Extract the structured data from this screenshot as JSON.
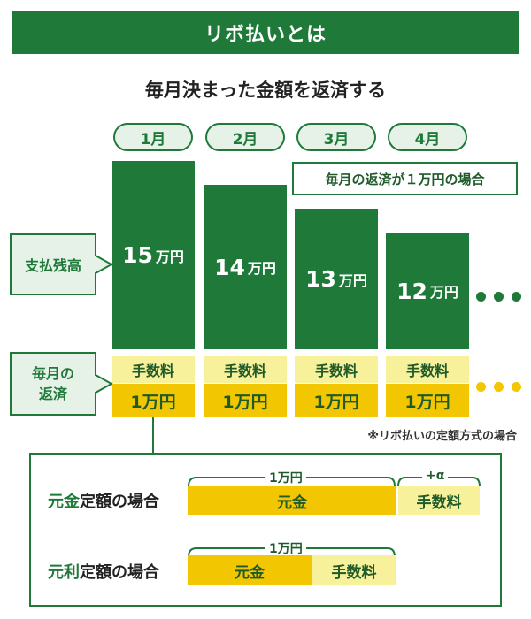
{
  "title": "リボ払いとは",
  "subtitle": "毎月決まった金額を返済する",
  "months": [
    "1月",
    "2月",
    "3月",
    "4月"
  ],
  "note": "毎月の返済が１万円の場合",
  "row_labels": {
    "balance": "支払残高",
    "monthly_payment": "毎月の\n返済"
  },
  "balances": [
    {
      "num": "15",
      "unit": "万円",
      "value": 15
    },
    {
      "num": "14",
      "unit": "万円",
      "value": 14
    },
    {
      "num": "13",
      "unit": "万円",
      "value": 13
    },
    {
      "num": "12",
      "unit": "万円",
      "value": 12
    }
  ],
  "fee_label": "手数料",
  "payment_label": "1万円",
  "footnote": "※リボ払いの定額方式の場合",
  "cases": [
    {
      "label_highlight": "元金",
      "label_rest": "定額の場合",
      "top_brace": "1万円",
      "extra_brace": "+α",
      "segments": [
        "元金",
        "手数料"
      ]
    },
    {
      "label_highlight": "元利",
      "label_rest": "定額の場合",
      "top_brace": "1万円",
      "segments": [
        "元金",
        "手数料"
      ]
    }
  ],
  "colors": {
    "green": "#1f7a3a",
    "light_green": "#e6f1e8",
    "yellow": "#f2c600",
    "pale_yellow": "#f6f19a"
  }
}
